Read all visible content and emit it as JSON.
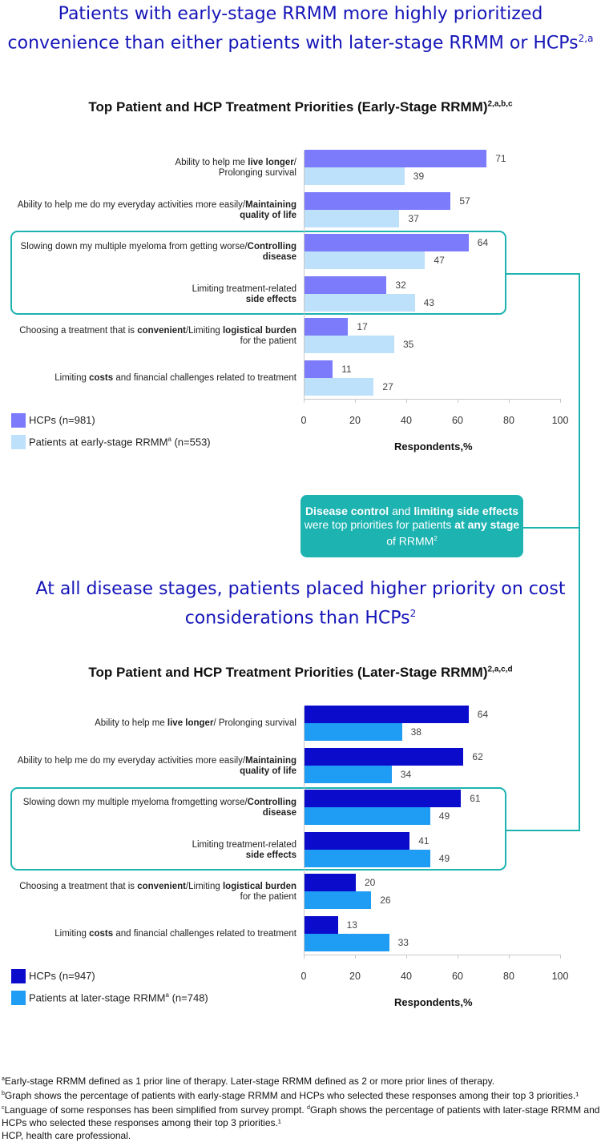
{
  "headline1": {
    "text": "Patients with early-stage RRMM more highly prioritized convenience than either patients with later-stage RRMM or HCPs",
    "sup": "2,a"
  },
  "headline2": {
    "text": "At all disease stages, patients placed higher priority on cost considerations than HCPs",
    "sup": "2"
  },
  "callout": {
    "parts": [
      {
        "t": "Disease control",
        "b": true
      },
      {
        "t": " and ",
        "b": false
      },
      {
        "t": "limiting side effects",
        "b": true
      },
      {
        "t": " were top priorities for patients ",
        "b": false
      },
      {
        "t": "at any stage",
        "b": true
      },
      {
        "t": " of RRMM",
        "b": false
      }
    ],
    "sup": "2"
  },
  "footnotes": [
    {
      "sup": "a",
      "text": "Early-stage RRMM defined as 1 prior line of therapy. Later-stage RRMM defined as 2 or more prior lines of therapy."
    },
    {
      "sup": "b",
      "text": "Graph shows the percentage of patients with early-stage RRMM and HCPs who selected these responses among their top 3 priorities.¹ "
    },
    {
      "sup": "c",
      "text": "Language of some responses has been simplified from survey prompt. "
    },
    {
      "sup": "d",
      "text": "Graph shows the percentage of patients with later-stage RRMM and HCPs who selected these responses among their top 3 priorities.¹"
    },
    {
      "sup": "",
      "text": "HCP, health care professional."
    }
  ],
  "chart_data": [
    {
      "type": "bar",
      "orientation": "horizontal",
      "title": "Top Patient and HCP Treatment Priorities (Early-Stage RRMM)",
      "title_sup": "2,a,b,c",
      "xlabel": "Respondents,%",
      "xlim": [
        0,
        100
      ],
      "xticks": [
        0,
        20,
        40,
        60,
        80,
        100
      ],
      "grid": false,
      "legend_position": "bottom-left",
      "highlighted_categories": [
        2,
        3
      ],
      "categories": [
        [
          {
            "t": "Ability to help me ",
            "b": false
          },
          {
            "t": "live longer",
            "b": true
          },
          {
            "t": "/",
            "b": false
          },
          {
            "br": true
          },
          {
            "t": "Prolonging survival",
            "b": false
          }
        ],
        [
          {
            "t": "Ability to help me do my everyday activities more easily/",
            "b": false
          },
          {
            "t": "Maintaining",
            "b": true
          },
          {
            "br": true
          },
          {
            "t": "quality of life",
            "b": true
          }
        ],
        [
          {
            "t": "Slowing down my multiple myeloma from getting worse/",
            "b": false
          },
          {
            "t": "Controlling",
            "b": true
          },
          {
            "br": true
          },
          {
            "t": "disease",
            "b": true
          }
        ],
        [
          {
            "t": "Limiting treatment-related",
            "b": false
          },
          {
            "br": true
          },
          {
            "t": "side effects",
            "b": true
          }
        ],
        [
          {
            "t": "Choosing a treatment that is ",
            "b": false
          },
          {
            "t": "convenient",
            "b": true
          },
          {
            "t": "/Limiting ",
            "b": false
          },
          {
            "t": "logistical burden",
            "b": true
          },
          {
            "br": true
          },
          {
            "t": "for the patient",
            "b": false
          }
        ],
        [
          {
            "t": "Limiting ",
            "b": false
          },
          {
            "t": "costs",
            "b": true
          },
          {
            "t": " and financial challenges related to treatment",
            "b": false
          }
        ]
      ],
      "series": [
        {
          "name": "HCPs (n=981)",
          "name_sup": "",
          "color": "#7b7bfc",
          "values": [
            71,
            57,
            64,
            32,
            17,
            11
          ]
        },
        {
          "name": "Patients at early-stage RRMM",
          "name_sup": "a",
          "name_suffix": " (n=553)",
          "color": "#bde0fb",
          "values": [
            39,
            37,
            47,
            43,
            35,
            27
          ]
        }
      ]
    },
    {
      "type": "bar",
      "orientation": "horizontal",
      "title": "Top Patient and HCP Treatment Priorities (Later-Stage RRMM)",
      "title_sup": "2,a,c,d",
      "xlabel": "Respondents,%",
      "xlim": [
        0,
        100
      ],
      "xticks": [
        0,
        20,
        40,
        60,
        80,
        100
      ],
      "grid": false,
      "legend_position": "bottom-left",
      "highlighted_categories": [
        2,
        3
      ],
      "categories": [
        [
          {
            "t": "Ability to help me ",
            "b": false
          },
          {
            "t": "live longer",
            "b": true
          },
          {
            "t": "/ Prolonging survival",
            "b": false
          }
        ],
        [
          {
            "t": "Ability to help me do my everyday activities more easily/",
            "b": false
          },
          {
            "t": "Maintaining",
            "b": true
          },
          {
            "br": true
          },
          {
            "t": "quality of life",
            "b": true
          }
        ],
        [
          {
            "t": "Slowing down my multiple myeloma fromgetting worse/",
            "b": false
          },
          {
            "t": "Controlling",
            "b": true
          },
          {
            "br": true
          },
          {
            "t": "disease",
            "b": true
          }
        ],
        [
          {
            "t": "Limiting treatment-related",
            "b": false
          },
          {
            "br": true
          },
          {
            "t": "side effects",
            "b": true
          }
        ],
        [
          {
            "t": "Choosing a treatment that is ",
            "b": false
          },
          {
            "t": "convenient",
            "b": true
          },
          {
            "t": "/Limiting ",
            "b": false
          },
          {
            "t": "logistical burden",
            "b": true
          },
          {
            "br": true
          },
          {
            "t": "for the patient",
            "b": false
          }
        ],
        [
          {
            "t": "Limiting ",
            "b": false
          },
          {
            "t": "costs",
            "b": true
          },
          {
            "t": " and financial challenges related to treatment",
            "b": false
          }
        ]
      ],
      "series": [
        {
          "name": "HCPs (n=947)",
          "name_sup": "",
          "color": "#0b0bcc",
          "values": [
            64,
            62,
            61,
            41,
            20,
            13
          ]
        },
        {
          "name": "Patients at later-stage RRMM",
          "name_sup": "a",
          "name_suffix": " (n=748)",
          "color": "#1f9cf4",
          "values": [
            38,
            34,
            49,
            49,
            26,
            33
          ]
        }
      ]
    }
  ]
}
